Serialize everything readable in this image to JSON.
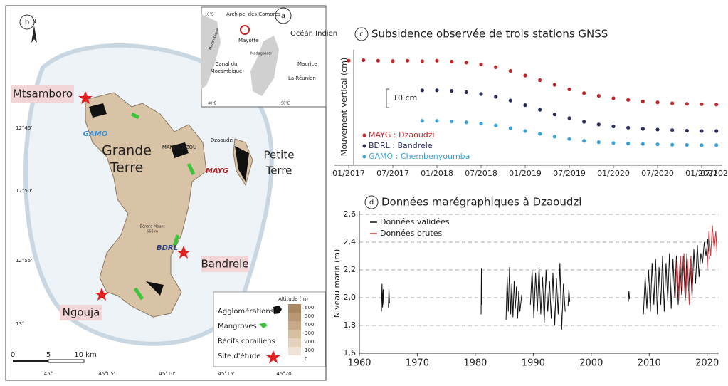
{
  "map": {
    "panel": "b",
    "north": "N",
    "places": {
      "mtsamboro": "Mtsamboro",
      "grande": "Grande",
      "terre": "Terre",
      "petite": "Petite",
      "terre2": "Terre",
      "mamoudzou": "MAMOUDZOU",
      "dzaoudzi": "Dzaoudzi",
      "benara": "Bénara Mount",
      "benara_alt": "660 m",
      "bandrele": "Bandrele",
      "ngouja": "Ngouja"
    },
    "stations": {
      "gamo": "GAMO",
      "mayg": "MAYG",
      "bdrl": "BDRL"
    },
    "latitudes": [
      "12°45'",
      "12°50'",
      "12°55'",
      "13°"
    ],
    "longitudes": [
      "45°",
      "45°05'",
      "45°10'",
      "45°15'",
      "45°20'"
    ],
    "scale": [
      "0",
      "5",
      "10 km"
    ],
    "legend": {
      "title": "Altitude (m)",
      "levels": [
        600,
        500,
        400,
        300,
        200,
        100,
        0
      ],
      "items": [
        "Agglomérations",
        "Mangroves",
        "Récifs coralliens",
        "Site d'étude"
      ]
    },
    "inset": {
      "panel": "a",
      "archipel": "Archipel des Comores",
      "ocean": "Océan Indien",
      "mayotte": "Mayotte",
      "madagascar": "Madagascar",
      "mozambique": "Mozambique",
      "canal": [
        "Canal du",
        "Mozambique"
      ],
      "maurice": "Maurice",
      "reunion": "La Réunion",
      "lat": "10°S",
      "lon": [
        "40°E",
        "50°E"
      ]
    }
  },
  "chart_data": [
    {
      "type": "scatter",
      "panel": "c",
      "title": "Subsidence observée de trois stations GNSS",
      "ylabel": "Mouvement vertical (cm)",
      "scale_bar": {
        "value": 10,
        "label": "10 cm"
      },
      "x": [
        "01/2017",
        "03/2017",
        "05/2017",
        "07/2017",
        "09/2017",
        "11/2017",
        "01/2018",
        "03/2018",
        "05/2018",
        "07/2018",
        "09/2018",
        "11/2018",
        "01/2019",
        "03/2019",
        "05/2019",
        "07/2019",
        "09/2019",
        "11/2019",
        "01/2020",
        "03/2020",
        "05/2020",
        "07/2020",
        "09/2020",
        "11/2020",
        "01/2021",
        "03/2021",
        "05/2021"
      ],
      "series": [
        {
          "name": "MAYG : Dzaoudzi",
          "color": "#c0272d",
          "values": [
            0,
            0.3,
            0,
            -0.2,
            0,
            -0.3,
            0,
            -0.5,
            -1,
            -2,
            -3.5,
            -5.5,
            -8,
            -10.5,
            -13,
            -15.5,
            -17.5,
            -19,
            -20.3,
            -21.2,
            -22,
            -22.5,
            -23,
            -23.3,
            -23.5,
            -23.7,
            -23.8
          ]
        },
        {
          "name": "BDRL : Bandrele",
          "color": "#2b2f5e",
          "values": [
            null,
            null,
            null,
            null,
            null,
            -16,
            -16,
            -16.3,
            -17,
            -18,
            -19.5,
            -21.5,
            -24,
            -26.5,
            -29,
            -31,
            -33,
            -34.5,
            -35.5,
            -36.2,
            -36.8,
            -37.2,
            -37.5,
            -37.8,
            -38,
            -38,
            -38.2
          ]
        },
        {
          "name": "GAMO : Chembenyoumba",
          "color": "#3ba3d8",
          "values": [
            null,
            null,
            null,
            null,
            null,
            -32.5,
            -32.5,
            -32.8,
            -33.3,
            -34,
            -35,
            -36.5,
            -38,
            -39.5,
            -41,
            -42.3,
            -43.3,
            -44,
            -44.5,
            -44.8,
            -45,
            -45.2,
            -45.4,
            -45.5,
            -45.6,
            -45.6,
            -45.7
          ]
        }
      ],
      "xlim": [
        "01/2017",
        "07/2021"
      ],
      "xticks": [
        "01/2017",
        "07/2017",
        "01/2018",
        "07/2018",
        "01/2019",
        "07/2019",
        "01/2020",
        "07/2020",
        "01/2021",
        {
          "value": "07/2021",
          "label": "07/202"
        }
      ],
      "ylim": [
        -48,
        2
      ]
    },
    {
      "type": "line",
      "panel": "d",
      "title": "Données marégraphiques à Dzaoudzi",
      "ylabel": "Niveau marin (m)",
      "series": [
        {
          "name": "Données validées",
          "color": "#111111",
          "x": [
            1963.8,
            1963.9,
            1964.0,
            1964.1,
            1964.2,
            null,
            1965.0,
            1965.1,
            1965.2,
            null,
            1981.0,
            1981.05,
            1981.1,
            null,
            1985.3,
            1985.5,
            1985.7,
            1985.9,
            1986.1,
            1986.3,
            1986.5,
            1986.7,
            1986.9,
            1987.1,
            1987.3,
            1987.5,
            1987.7,
            1988.0,
            null,
            1989.5,
            1989.8,
            1990.1,
            1990.4,
            1990.7,
            1991.0,
            1991.3,
            1991.6,
            1991.9,
            1992.2,
            1992.5,
            1992.8,
            1993.1,
            1993.4,
            1993.7,
            1994.0,
            1994.3,
            1994.6,
            1994.9,
            1995.2,
            1995.5,
            null,
            1996.0,
            1996.15,
            1996.3,
            null,
            2006.4,
            2006.5,
            2006.6,
            null,
            2009.0,
            2009.3,
            2009.6,
            2009.9,
            2010.2,
            2010.5,
            2010.8,
            2011.1,
            2011.4,
            2011.7,
            2012.0,
            2012.3,
            2012.6,
            2012.9,
            2013.2,
            2013.5,
            2013.8,
            2014.1,
            2014.4,
            2014.7,
            2015.0,
            2015.3,
            2015.6,
            2015.9,
            2016.2,
            2016.5,
            2016.8,
            2017.1,
            2017.4,
            2017.7,
            2018.0,
            2018.3,
            2018.6,
            2018.9,
            2019.2,
            2019.5,
            2019.8,
            2020.1,
            2020.4
          ],
          "values": [
            1.9,
            2.1,
            1.93,
            2.06,
            1.95,
            null,
            1.93,
            2.07,
            1.96,
            null,
            1.88,
            2.21,
            1.95,
            null,
            1.84,
            2.15,
            1.9,
            2.22,
            1.88,
            2.1,
            1.86,
            2.12,
            1.92,
            2.08,
            1.85,
            2.05,
            1.9,
            2.02,
            null,
            1.95,
            2.2,
            1.85,
            2.18,
            1.9,
            2.22,
            1.88,
            2.15,
            1.82,
            2.2,
            1.9,
            2.12,
            1.85,
            2.18,
            1.8,
            2.14,
            1.88,
            2.25,
            1.77,
            2.1,
            1.9,
            null,
            1.94,
            2.06,
            1.97,
            null,
            1.97,
            2.05,
            1.99,
            null,
            1.88,
            2.15,
            1.92,
            2.2,
            1.9,
            2.25,
            1.95,
            2.28,
            1.88,
            2.22,
            1.95,
            2.3,
            1.9,
            2.25,
            1.98,
            2.32,
            1.92,
            2.28,
            2.0,
            2.3,
            1.95,
            2.25,
            2.02,
            2.3,
            1.98,
            2.32,
            2.05,
            2.28,
            2.0,
            2.35,
            2.1,
            2.38,
            2.15,
            2.32,
            2.25,
            2.4,
            2.3,
            2.42,
            2.28
          ]
        },
        {
          "name": "Données brutes",
          "color": "#d0343c",
          "x": [
            2014.5,
            2014.8,
            2015.1,
            2015.4,
            2015.7,
            2016.0,
            2016.3,
            2016.6,
            2016.9,
            2017.2,
            2017.5,
            null,
            2020.0,
            2020.3,
            2020.6,
            2020.9,
            2021.2,
            2021.5,
            2021.7
          ],
          "values": [
            2.0,
            2.28,
            1.98,
            2.3,
            2.05,
            2.32,
            2.0,
            2.28,
            1.95,
            2.3,
            2.05,
            null,
            2.2,
            2.48,
            2.3,
            2.52,
            2.35,
            2.48,
            2.3
          ]
        }
      ],
      "xlim": [
        1960,
        2022
      ],
      "xticks": [
        1960,
        1970,
        1980,
        1990,
        2000,
        2010,
        2020
      ],
      "ylim": [
        1.6,
        2.6
      ],
      "yticks": [
        {
          "value": 1.6,
          "label": "1,6"
        },
        {
          "value": 1.8,
          "label": "1,8"
        },
        {
          "value": 2.0,
          "label": "2,0"
        },
        {
          "value": 2.2,
          "label": "2,2"
        },
        {
          "value": 2.4,
          "label": "2,4"
        },
        {
          "value": 2.6,
          "label": "2,6"
        }
      ],
      "grid": true
    }
  ]
}
